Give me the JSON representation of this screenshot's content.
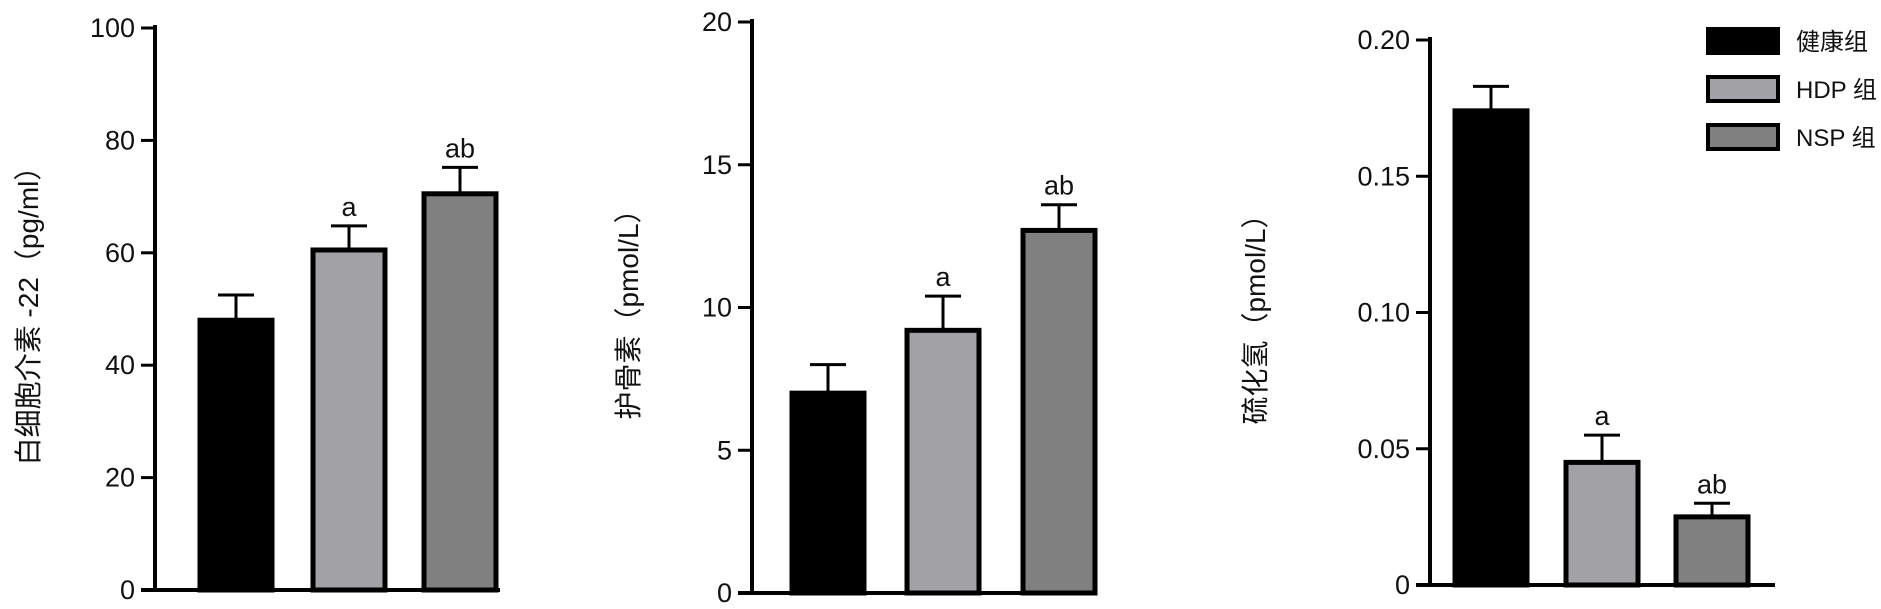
{
  "chart_data": [
    {
      "type": "bar",
      "categories": [
        "健康组",
        "HDP 组",
        "NSP 组"
      ],
      "values": [
        48,
        60.5,
        70.5
      ],
      "errors": [
        4.5,
        4.3,
        4.7
      ],
      "labels": [
        "",
        "a",
        "ab"
      ],
      "ylabel": "白细胞介素 -22（pg/ml）",
      "ylim": [
        0,
        100
      ],
      "yticks": [
        0,
        20,
        40,
        60,
        80,
        100
      ],
      "ytick_labels": [
        "0",
        "20",
        "40",
        "60",
        "80",
        "100"
      ],
      "grid": false
    },
    {
      "type": "bar",
      "categories": [
        "健康组",
        "HDP 组",
        "NSP 组"
      ],
      "values": [
        7.0,
        9.2,
        12.7
      ],
      "errors": [
        1.0,
        1.2,
        0.9
      ],
      "labels": [
        "",
        "a",
        "ab"
      ],
      "ylabel": "护骨素（pmol/L）",
      "ylim": [
        0,
        20
      ],
      "yticks": [
        0,
        5,
        10,
        15,
        20
      ],
      "ytick_labels": [
        "0",
        "5",
        "10",
        "15",
        "20"
      ],
      "grid": false
    },
    {
      "type": "bar",
      "categories": [
        "健康组",
        "HDP 组",
        "NSP 组"
      ],
      "values": [
        0.174,
        0.045,
        0.025
      ],
      "errors": [
        0.009,
        0.01,
        0.005
      ],
      "labels": [
        "",
        "a",
        "ab"
      ],
      "ylabel": "硫化氢（pmol/L）",
      "ylim": [
        0,
        0.2
      ],
      "yticks": [
        0,
        0.05,
        0.1,
        0.15,
        0.2
      ],
      "ytick_labels": [
        "0",
        "0.05",
        "0.10",
        "0.15",
        "0.20"
      ],
      "grid": false
    }
  ],
  "legend": {
    "position": "top-right",
    "items": [
      {
        "label": "健康组",
        "color": "#000000"
      },
      {
        "label": "HDP 组",
        "color": "#a2a1a6"
      },
      {
        "label": "NSP 组",
        "color": "#808081"
      }
    ]
  },
  "bar_colors": [
    "#000000",
    "#a2a1a6",
    "#808081"
  ],
  "bar_outline_color": "#000000"
}
